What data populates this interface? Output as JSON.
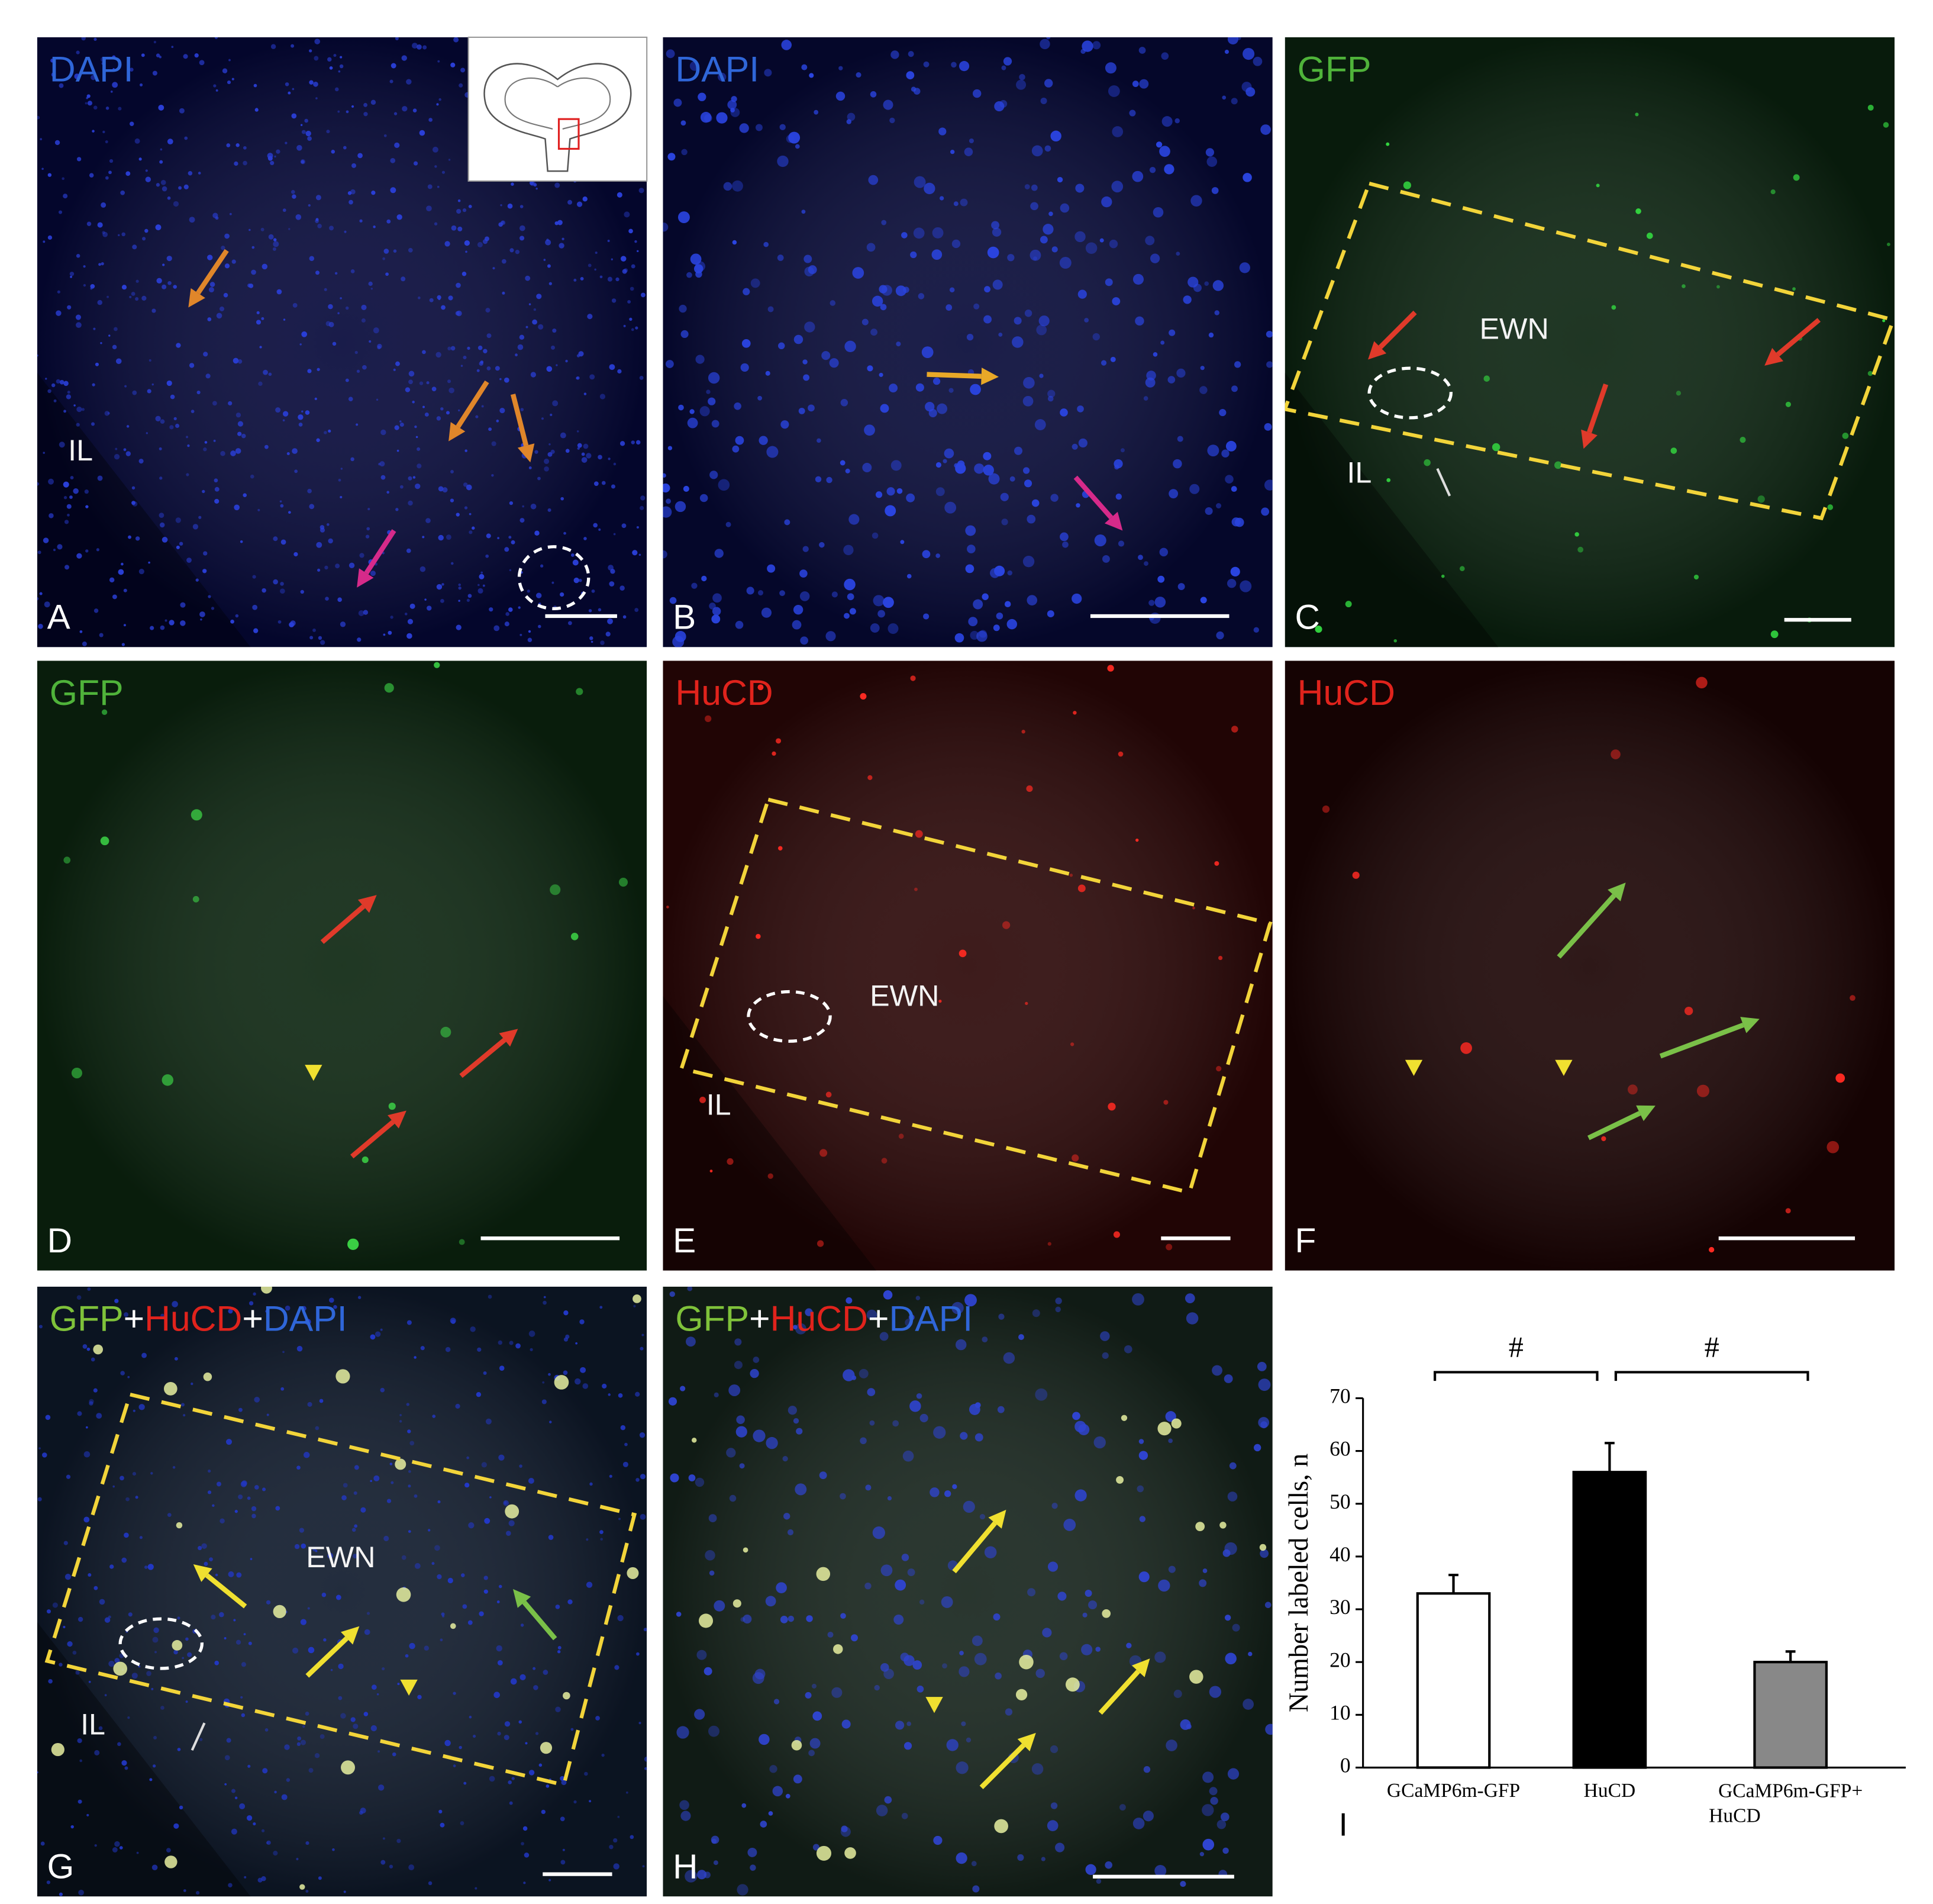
{
  "panels": [
    {
      "letter": "A",
      "stain": [
        {
          "text": "DAPI",
          "color": "#2f66d8"
        }
      ],
      "labels": [
        "IL"
      ]
    },
    {
      "letter": "B",
      "stain": [
        {
          "text": "DAPI",
          "color": "#2f66d8"
        }
      ],
      "labels": []
    },
    {
      "letter": "C",
      "stain": [
        {
          "text": "GFP",
          "color": "#4fb33a"
        }
      ],
      "labels": [
        "EWN",
        "IL"
      ]
    },
    {
      "letter": "D",
      "stain": [
        {
          "text": "GFP",
          "color": "#4fb33a"
        }
      ],
      "labels": []
    },
    {
      "letter": "E",
      "stain": [
        {
          "text": "HuCD",
          "color": "#e0231c"
        }
      ],
      "labels": [
        "EWN",
        "IL"
      ]
    },
    {
      "letter": "F",
      "stain": [
        {
          "text": "HuCD",
          "color": "#e0231c"
        }
      ],
      "labels": []
    },
    {
      "letter": "G",
      "stain": [
        {
          "text": "GFP",
          "color": "#7fc23a"
        },
        {
          "text": "+",
          "color": "#ffffff"
        },
        {
          "text": "HuCD",
          "color": "#e0231c"
        },
        {
          "text": "+",
          "color": "#ffffff"
        },
        {
          "text": "DAPI",
          "color": "#2f66d8"
        }
      ],
      "labels": [
        "EWN",
        "IL"
      ]
    },
    {
      "letter": "H",
      "stain": [
        {
          "text": "GFP",
          "color": "#7fc23a"
        },
        {
          "text": "+",
          "color": "#ffffff"
        },
        {
          "text": "HuCD",
          "color": "#e0231c"
        },
        {
          "text": "+",
          "color": "#ffffff"
        },
        {
          "text": "DAPI",
          "color": "#2f66d8"
        }
      ],
      "labels": []
    }
  ],
  "chart_data": {
    "type": "bar",
    "panel_letter": "I",
    "y_label": "Number labeled cells, n",
    "categories": [
      "GCaMP6m-GFP",
      "HuCD",
      "GCaMP6m-GFP+HuCD"
    ],
    "values": [
      33,
      56,
      20
    ],
    "errors": [
      3.5,
      5.5,
      2
    ],
    "colors": [
      "#ffffff",
      "#000000",
      "#888888"
    ],
    "ylim": [
      0,
      70
    ],
    "yticks": [
      0,
      10,
      20,
      30,
      40,
      50,
      60,
      70
    ],
    "annotations": [
      "#",
      "#"
    ]
  }
}
